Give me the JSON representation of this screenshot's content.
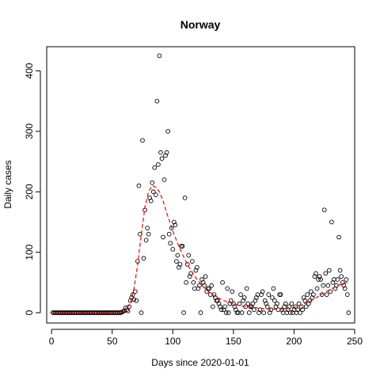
{
  "chart_data": {
    "type": "scatter",
    "title": "Norway",
    "xlabel": "Days since 2020-01-01",
    "ylabel": "Daily cases",
    "xlim": [
      -4,
      250
    ],
    "ylim": [
      -17,
      440
    ],
    "x_ticks": [
      0,
      50,
      100,
      150,
      200,
      250
    ],
    "y_ticks": [
      0,
      100,
      200,
      300,
      400
    ],
    "grid": false,
    "legend": "none",
    "series": [
      {
        "kind": "points",
        "marker": "open-circle",
        "color": "#000000",
        "points": [
          [
            1,
            0
          ],
          [
            2,
            0
          ],
          [
            3,
            0
          ],
          [
            4,
            0
          ],
          [
            5,
            0
          ],
          [
            6,
            0
          ],
          [
            7,
            0
          ],
          [
            8,
            0
          ],
          [
            9,
            0
          ],
          [
            10,
            0
          ],
          [
            11,
            0
          ],
          [
            12,
            0
          ],
          [
            13,
            0
          ],
          [
            14,
            0
          ],
          [
            15,
            0
          ],
          [
            16,
            0
          ],
          [
            17,
            0
          ],
          [
            18,
            0
          ],
          [
            19,
            0
          ],
          [
            20,
            0
          ],
          [
            21,
            0
          ],
          [
            22,
            0
          ],
          [
            23,
            0
          ],
          [
            24,
            0
          ],
          [
            25,
            0
          ],
          [
            26,
            0
          ],
          [
            27,
            0
          ],
          [
            28,
            0
          ],
          [
            29,
            0
          ],
          [
            30,
            0
          ],
          [
            31,
            0
          ],
          [
            32,
            0
          ],
          [
            33,
            0
          ],
          [
            34,
            0
          ],
          [
            35,
            0
          ],
          [
            36,
            0
          ],
          [
            37,
            0
          ],
          [
            38,
            0
          ],
          [
            39,
            0
          ],
          [
            40,
            0
          ],
          [
            41,
            0
          ],
          [
            42,
            0
          ],
          [
            43,
            0
          ],
          [
            44,
            0
          ],
          [
            45,
            0
          ],
          [
            46,
            0
          ],
          [
            47,
            0
          ],
          [
            48,
            0
          ],
          [
            49,
            0
          ],
          [
            50,
            0
          ],
          [
            51,
            0
          ],
          [
            52,
            0
          ],
          [
            53,
            0
          ],
          [
            54,
            0
          ],
          [
            55,
            0
          ],
          [
            56,
            0
          ],
          [
            57,
            0
          ],
          [
            58,
            1
          ],
          [
            59,
            2
          ],
          [
            60,
            3
          ],
          [
            61,
            8
          ],
          [
            62,
            5
          ],
          [
            63,
            3
          ],
          [
            64,
            10
          ],
          [
            65,
            20
          ],
          [
            66,
            25
          ],
          [
            67,
            30
          ],
          [
            68,
            22
          ],
          [
            69,
            35
          ],
          [
            70,
            20
          ],
          [
            71,
            85
          ],
          [
            72,
            210
          ],
          [
            73,
            130
          ],
          [
            74,
            0
          ],
          [
            75,
            285
          ],
          [
            76,
            90
          ],
          [
            77,
            170
          ],
          [
            78,
            120
          ],
          [
            79,
            140
          ],
          [
            80,
            130
          ],
          [
            81,
            190
          ],
          [
            82,
            185
          ],
          [
            83,
            215
          ],
          [
            84,
            200
          ],
          [
            85,
            240
          ],
          [
            86,
            195
          ],
          [
            87,
            350
          ],
          [
            88,
            245
          ],
          [
            89,
            425
          ],
          [
            90,
            265
          ],
          [
            91,
            255
          ],
          [
            92,
            125
          ],
          [
            93,
            220
          ],
          [
            94,
            260
          ],
          [
            95,
            265
          ],
          [
            96,
            300
          ],
          [
            97,
            130
          ],
          [
            98,
            115
          ],
          [
            99,
            140
          ],
          [
            100,
            105
          ],
          [
            101,
            150
          ],
          [
            102,
            145
          ],
          [
            103,
            85
          ],
          [
            104,
            95
          ],
          [
            105,
            75
          ],
          [
            106,
            80
          ],
          [
            107,
            110
          ],
          [
            108,
            110
          ],
          [
            109,
            0
          ],
          [
            110,
            190
          ],
          [
            111,
            50
          ],
          [
            112,
            80
          ],
          [
            113,
            95
          ],
          [
            114,
            60
          ],
          [
            115,
            65
          ],
          [
            116,
            85
          ],
          [
            117,
            50
          ],
          [
            118,
            40
          ],
          [
            119,
            70
          ],
          [
            120,
            75
          ],
          [
            121,
            40
          ],
          [
            122,
            45
          ],
          [
            123,
            0
          ],
          [
            124,
            55
          ],
          [
            125,
            50
          ],
          [
            126,
            45
          ],
          [
            127,
            60
          ],
          [
            128,
            35
          ],
          [
            129,
            40
          ],
          [
            130,
            40
          ],
          [
            131,
            30
          ],
          [
            132,
            45
          ],
          [
            133,
            10
          ],
          [
            134,
            30
          ],
          [
            135,
            25
          ],
          [
            136,
            20
          ],
          [
            137,
            20
          ],
          [
            138,
            15
          ],
          [
            139,
            10
          ],
          [
            140,
            5
          ],
          [
            141,
            50
          ],
          [
            142,
            5
          ],
          [
            143,
            10
          ],
          [
            144,
            0
          ],
          [
            145,
            40
          ],
          [
            146,
            0
          ],
          [
            147,
            15
          ],
          [
            148,
            20
          ],
          [
            149,
            35
          ],
          [
            150,
            15
          ],
          [
            151,
            10
          ],
          [
            152,
            5
          ],
          [
            153,
            0
          ],
          [
            154,
            0
          ],
          [
            155,
            15
          ],
          [
            156,
            30
          ],
          [
            157,
            0
          ],
          [
            158,
            20
          ],
          [
            159,
            25
          ],
          [
            160,
            10
          ],
          [
            161,
            40
          ],
          [
            162,
            15
          ],
          [
            163,
            0
          ],
          [
            164,
            10
          ],
          [
            165,
            10
          ],
          [
            166,
            15
          ],
          [
            167,
            5
          ],
          [
            168,
            20
          ],
          [
            169,
            25
          ],
          [
            170,
            30
          ],
          [
            171,
            0
          ],
          [
            172,
            5
          ],
          [
            173,
            30
          ],
          [
            174,
            35
          ],
          [
            175,
            0
          ],
          [
            176,
            20
          ],
          [
            177,
            15
          ],
          [
            178,
            10
          ],
          [
            179,
            30
          ],
          [
            180,
            0
          ],
          [
            181,
            5
          ],
          [
            182,
            25
          ],
          [
            183,
            40
          ],
          [
            184,
            20
          ],
          [
            185,
            10
          ],
          [
            186,
            15
          ],
          [
            187,
            5
          ],
          [
            188,
            30
          ],
          [
            189,
            30
          ],
          [
            190,
            5
          ],
          [
            191,
            0
          ],
          [
            192,
            10
          ],
          [
            193,
            15
          ],
          [
            194,
            0
          ],
          [
            195,
            5
          ],
          [
            196,
            10
          ],
          [
            197,
            0
          ],
          [
            198,
            15
          ],
          [
            199,
            0
          ],
          [
            200,
            5
          ],
          [
            201,
            10
          ],
          [
            202,
            0
          ],
          [
            203,
            5
          ],
          [
            204,
            15
          ],
          [
            205,
            0
          ],
          [
            206,
            10
          ],
          [
            207,
            5
          ],
          [
            208,
            25
          ],
          [
            209,
            20
          ],
          [
            210,
            10
          ],
          [
            211,
            30
          ],
          [
            212,
            15
          ],
          [
            213,
            20
          ],
          [
            214,
            35
          ],
          [
            215,
            25
          ],
          [
            216,
            30
          ],
          [
            217,
            60
          ],
          [
            218,
            65
          ],
          [
            219,
            40
          ],
          [
            220,
            55
          ],
          [
            221,
            60
          ],
          [
            222,
            55
          ],
          [
            223,
            30
          ],
          [
            224,
            45
          ],
          [
            225,
            170
          ],
          [
            226,
            65
          ],
          [
            227,
            30
          ],
          [
            228,
            45
          ],
          [
            229,
            70
          ],
          [
            230,
            35
          ],
          [
            231,
            150
          ],
          [
            232,
            50
          ],
          [
            233,
            55
          ],
          [
            234,
            40
          ],
          [
            235,
            45
          ],
          [
            236,
            55
          ],
          [
            237,
            125
          ],
          [
            238,
            70
          ],
          [
            239,
            60
          ],
          [
            240,
            50
          ],
          [
            241,
            45
          ],
          [
            242,
            40
          ],
          [
            243,
            55
          ],
          [
            244,
            30
          ],
          [
            245,
            0
          ]
        ]
      },
      {
        "kind": "fit-line",
        "style": "dashed",
        "color": "#ff0000",
        "points": [
          [
            1,
            0
          ],
          [
            20,
            0
          ],
          [
            40,
            0
          ],
          [
            55,
            0
          ],
          [
            60,
            2
          ],
          [
            65,
            15
          ],
          [
            68,
            40
          ],
          [
            71,
            80
          ],
          [
            74,
            130
          ],
          [
            77,
            175
          ],
          [
            80,
            200
          ],
          [
            83,
            210
          ],
          [
            86,
            208
          ],
          [
            89,
            200
          ],
          [
            92,
            185
          ],
          [
            95,
            165
          ],
          [
            100,
            135
          ],
          [
            105,
            110
          ],
          [
            110,
            88
          ],
          [
            115,
            70
          ],
          [
            120,
            55
          ],
          [
            125,
            43
          ],
          [
            130,
            34
          ],
          [
            135,
            27
          ],
          [
            140,
            22
          ],
          [
            145,
            18
          ],
          [
            150,
            15
          ],
          [
            155,
            12
          ],
          [
            160,
            10
          ],
          [
            165,
            9
          ],
          [
            170,
            8
          ],
          [
            175,
            7
          ],
          [
            180,
            6
          ],
          [
            185,
            6
          ],
          [
            190,
            6
          ],
          [
            195,
            7
          ],
          [
            200,
            9
          ],
          [
            205,
            12
          ],
          [
            210,
            16
          ],
          [
            215,
            21
          ],
          [
            220,
            27
          ],
          [
            225,
            33
          ],
          [
            230,
            39
          ],
          [
            235,
            44
          ],
          [
            240,
            48
          ],
          [
            244,
            50
          ]
        ]
      }
    ]
  }
}
